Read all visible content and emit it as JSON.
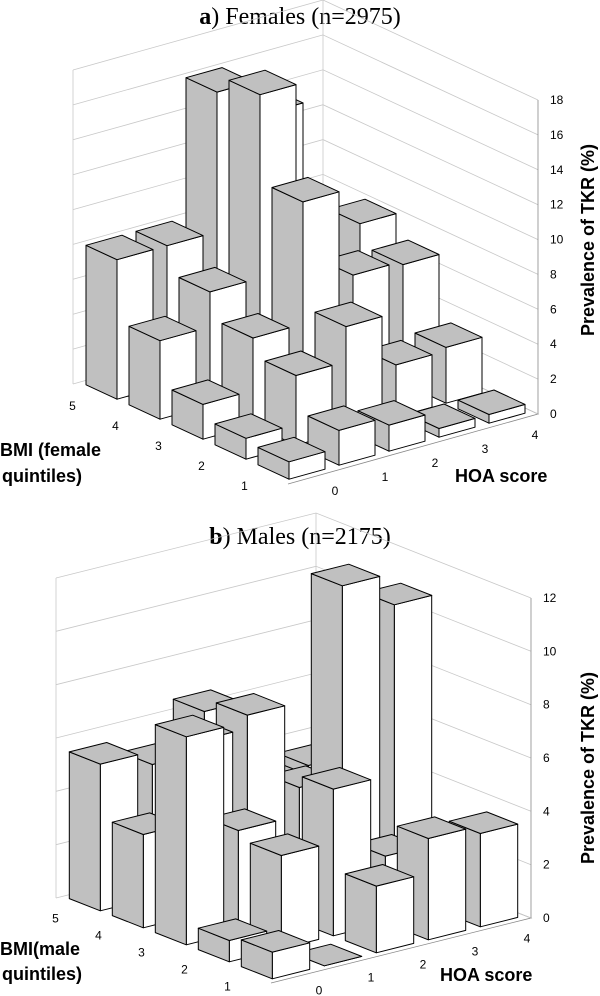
{
  "chart_data": [
    {
      "type": "bar3d",
      "title_letter": "a",
      "title_text": ") Females (n=2975)",
      "xlabel": "HOA score",
      "ylabel_lines": [
        "BMI (female",
        "quintiles)"
      ],
      "zlabel": "Prevalence of TKR (%)",
      "x_categories": [
        "0",
        "1",
        "2",
        "3",
        "4"
      ],
      "y_categories": [
        "1",
        "2",
        "3",
        "4",
        "5"
      ],
      "zlim": [
        0,
        18
      ],
      "zticks": [
        "0",
        "2",
        "4",
        "6",
        "8",
        "10",
        "12",
        "14",
        "16",
        "18"
      ],
      "values": [
        [
          1.0,
          2.0,
          1.5,
          0.5,
          0.5
        ],
        [
          1.2,
          4.0,
          6.0,
          3.0,
          3.2
        ],
        [
          2.0,
          5.0,
          12.0,
          7.0,
          6.8
        ],
        [
          4.5,
          6.5,
          17.0,
          3.5,
          8.0
        ],
        [
          8.0,
          8.0,
          16.0,
          14.0,
          1.0
        ]
      ]
    },
    {
      "type": "bar3d",
      "title_letter": "b",
      "title_text": ") Males (n=2175)",
      "xlabel": "HOA score",
      "ylabel_lines": [
        "BMI(male",
        "quintiles)"
      ],
      "zlabel": "Prevalence of TKR (%)",
      "x_categories": [
        "0",
        "1",
        "2",
        "3",
        "4"
      ],
      "y_categories": [
        "1",
        "2",
        "3",
        "4",
        "5"
      ],
      "zlim": [
        0,
        12
      ],
      "zticks": [
        "0",
        "2",
        "4",
        "6",
        "8",
        "10",
        "12"
      ],
      "values": [
        [
          1.0,
          0.0,
          2.5,
          3.8,
          3.5
        ],
        [
          0.8,
          3.5,
          5.5,
          2.5,
          1.0
        ],
        [
          7.8,
          3.8,
          1.5,
          12.0,
          10.8
        ],
        [
          3.5,
          6.5,
          7.0,
          3.8,
          5.6
        ],
        [
          5.5,
          5.0,
          6.5,
          3.5,
          3.5
        ]
      ]
    }
  ],
  "colors": {
    "bar_front": "#ffffff",
    "bar_side": "#c0c0c0",
    "bar_top": "#c0c0c0",
    "grid": "#c8c8c8",
    "text": "#000000"
  }
}
